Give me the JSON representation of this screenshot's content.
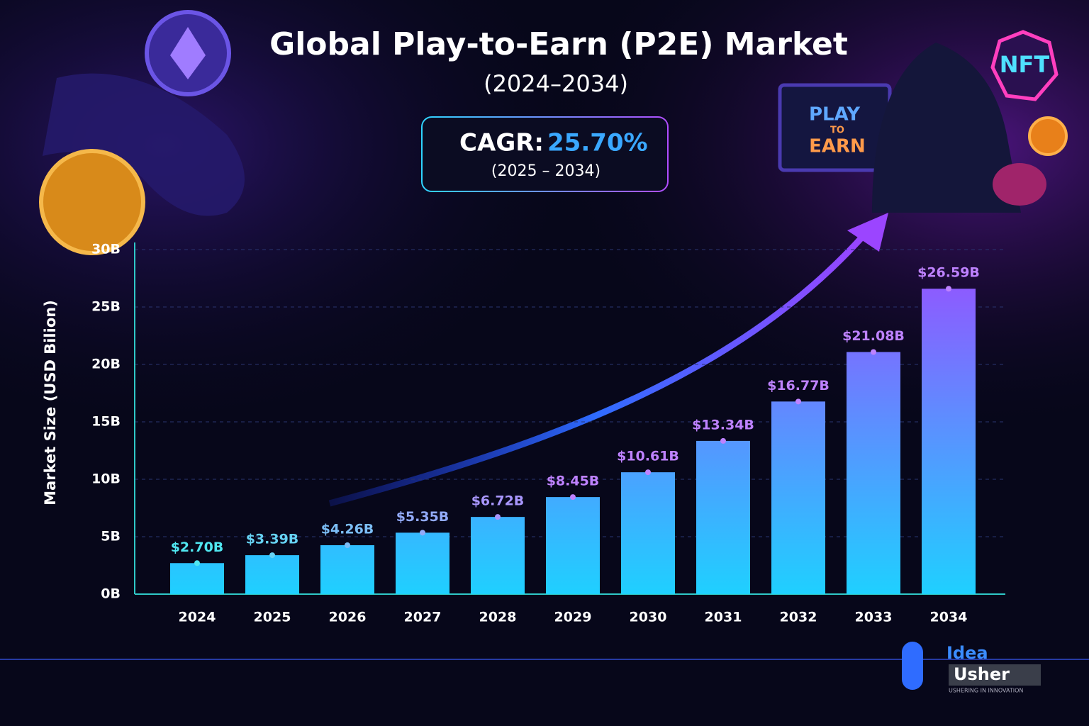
{
  "chart_data": {
    "type": "bar",
    "title": "Global Play-to-Earn (P2E) Market",
    "subtitle": "(2024–2034)",
    "annotations": {
      "cagr_label": "CAGR:",
      "cagr_value": "25.70%",
      "cagr_period": "(2025 – 2034)"
    },
    "y_label": "Market Size (USD Bilion)",
    "categories": [
      "2024",
      "2025",
      "2026",
      "2027",
      "2028",
      "2029",
      "2030",
      "2031",
      "2032",
      "2033",
      "2034"
    ],
    "values": [
      2.7,
      3.39,
      4.26,
      5.35,
      6.72,
      8.45,
      10.61,
      13.34,
      16.77,
      21.08,
      26.59
    ],
    "value_labels": [
      "$2.70B",
      "$3.39B",
      "$4.26B",
      "$5.35B",
      "$6.72B",
      "$8.45B",
      "$10.61B",
      "$13.34B",
      "$16.77B",
      "$21.08B",
      "$26.59B"
    ],
    "colors": {
      "bar_top": "#9a4dff",
      "bar_bottom": "#1fd0ff"
    },
    "ylim": [
      0,
      30
    ],
    "yticks": [
      {
        "value": 0,
        "label": "0B"
      },
      {
        "value": 5,
        "label": "5B"
      },
      {
        "value": 10,
        "label": "10B"
      },
      {
        "value": 15,
        "label": "15B"
      },
      {
        "value": 20,
        "label": "20B"
      },
      {
        "value": 25,
        "label": "25B"
      },
      {
        "value": 30,
        "label": "30B"
      }
    ],
    "grid": true
  },
  "illustration": {
    "screen_lines": [
      "PLAY",
      "TO",
      "EARN"
    ],
    "badge": "NFT"
  },
  "branding": {
    "logo_top": "Idea",
    "logo_bottom": "Usher",
    "tagline": "USHERING IN INNOVATION"
  }
}
